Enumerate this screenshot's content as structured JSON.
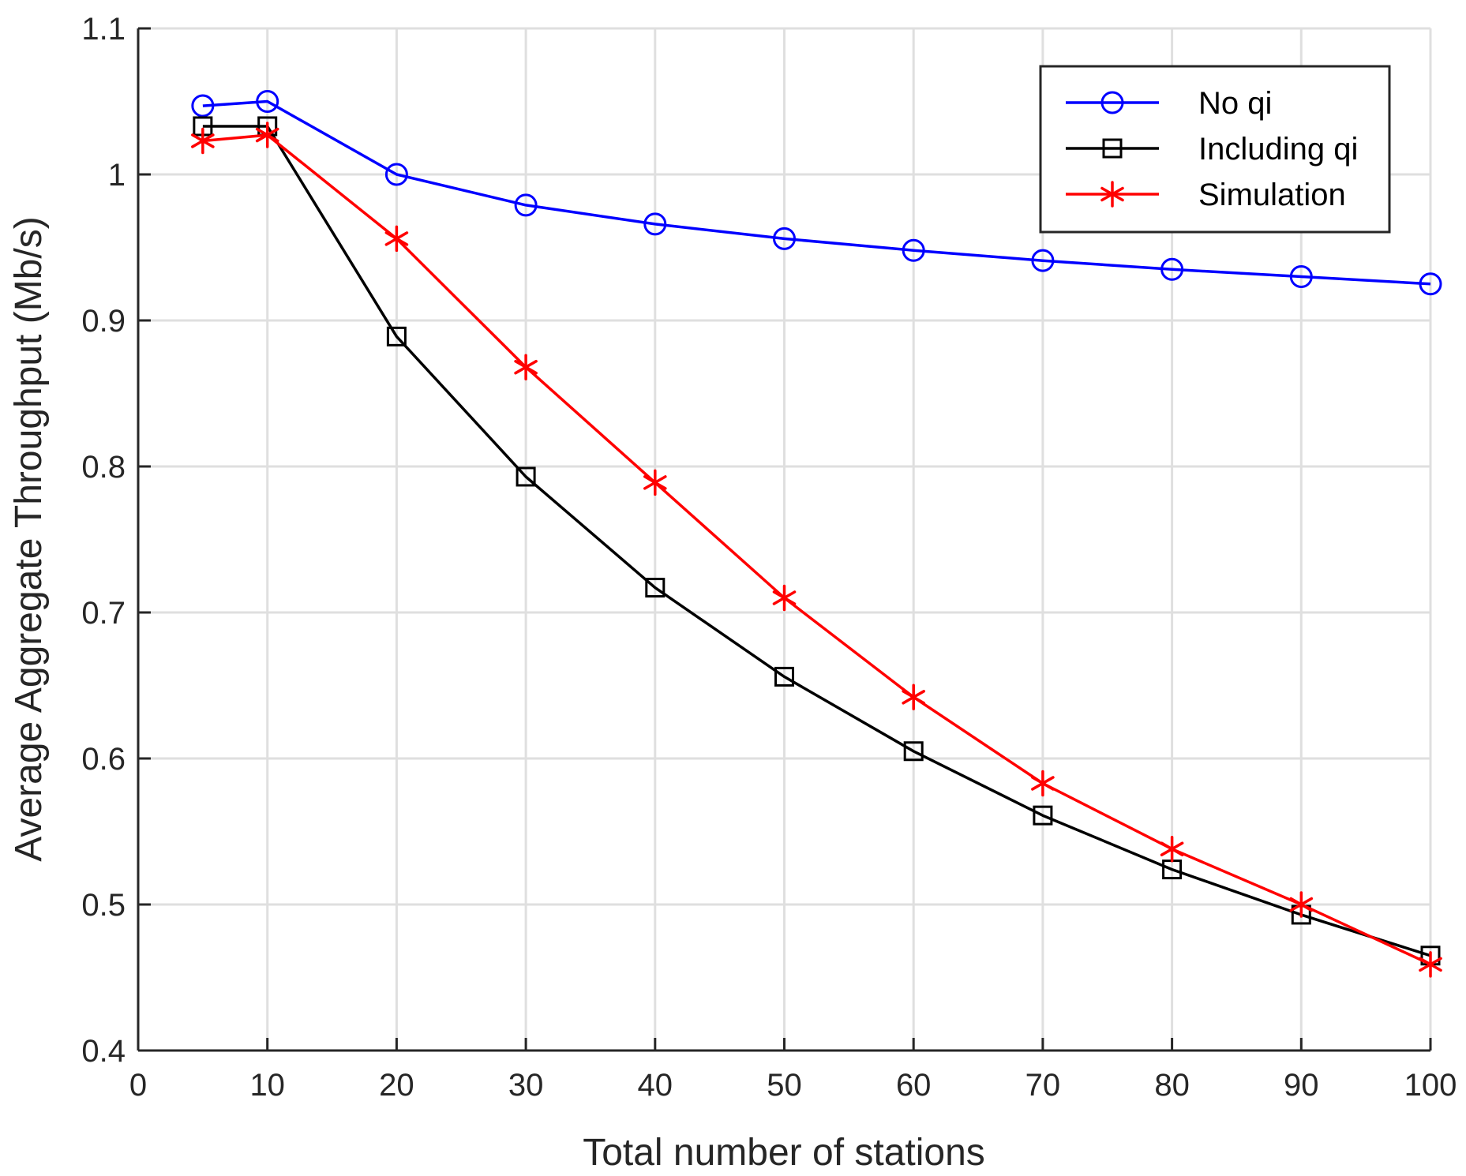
{
  "chart_data": {
    "type": "line",
    "title": "",
    "xlabel": "Total number of stations",
    "ylabel": "Average Aggregate Throughput (Mb/s)",
    "xlim": [
      0,
      100
    ],
    "ylim": [
      0.4,
      1.1
    ],
    "xticks": [
      0,
      10,
      20,
      30,
      40,
      50,
      60,
      70,
      80,
      90,
      100
    ],
    "yticks": [
      0.4,
      0.5,
      0.6,
      0.7,
      0.8,
      0.9,
      1,
      1.1
    ],
    "xtick_labels": [
      "0",
      "10",
      "20",
      "30",
      "40",
      "50",
      "60",
      "70",
      "80",
      "90",
      "100"
    ],
    "ytick_labels": [
      "0.4",
      "0.5",
      "0.6",
      "0.7",
      "0.8",
      "0.9",
      "1",
      "1.1"
    ],
    "grid": true,
    "legend_position": "top-right",
    "x": [
      5,
      10,
      20,
      30,
      40,
      50,
      60,
      70,
      80,
      90,
      100
    ],
    "series": [
      {
        "name": "No qi",
        "color": "#0000ff",
        "marker": "circle",
        "values": [
          1.047,
          1.05,
          1.0,
          0.979,
          0.966,
          0.956,
          0.948,
          0.941,
          0.935,
          0.93,
          0.925
        ]
      },
      {
        "name": "Including qi",
        "color": "#000000",
        "marker": "square",
        "values": [
          1.033,
          1.033,
          0.889,
          0.793,
          0.717,
          0.656,
          0.605,
          0.561,
          0.524,
          0.493,
          0.465
        ]
      },
      {
        "name": "Simulation",
        "color": "#ff0000",
        "marker": "asterisk",
        "values": [
          1.023,
          1.027,
          0.956,
          0.868,
          0.789,
          0.71,
          0.642,
          0.583,
          0.538,
          0.5,
          0.459
        ]
      }
    ]
  }
}
